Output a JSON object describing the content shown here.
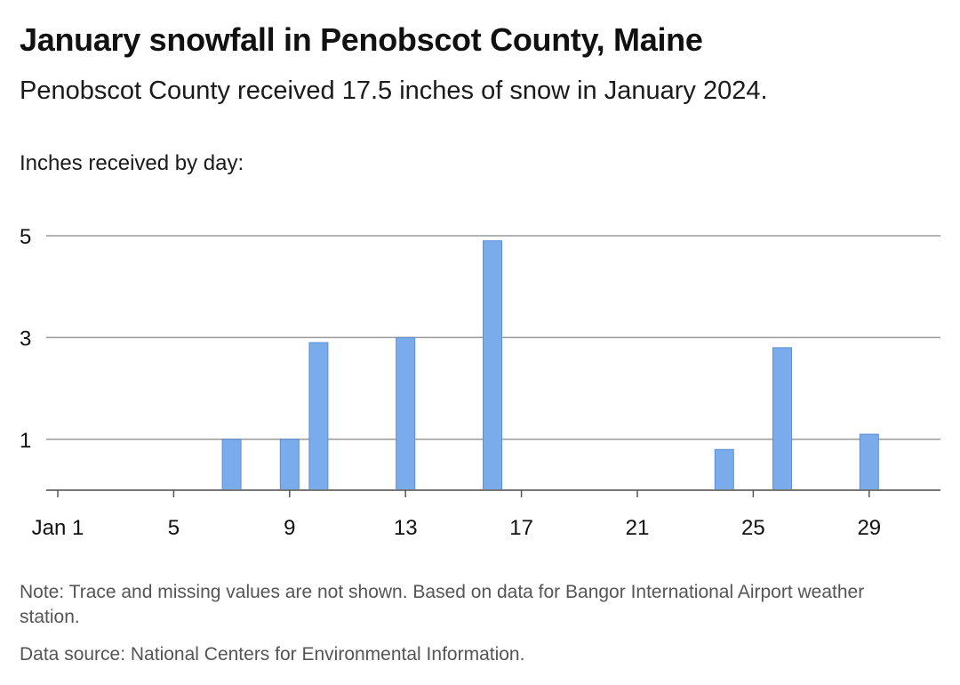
{
  "header": {
    "title": "January snowfall in Penobscot County, Maine",
    "subtitle": "Penobscot County received 17.5 inches of snow in January 2024.",
    "y_caption": "Inches received by day:"
  },
  "footer": {
    "note": "Note: Trace and missing values are not shown. Based on data for Bangor International Airport weather station.",
    "source": "Data source: National Centers for Environmental Information."
  },
  "chart_data": {
    "type": "bar",
    "title": "January snowfall in Penobscot County, Maine",
    "ylabel": "Inches received by day:",
    "xlabel": "",
    "xlim": [
      1,
      31
    ],
    "ylim": [
      0,
      5
    ],
    "y_ticks": [
      1,
      3,
      5
    ],
    "x_ticks": [
      1,
      5,
      9,
      13,
      17,
      21,
      25,
      29
    ],
    "x_tick_labels": [
      "Jan 1",
      "5",
      "9",
      "13",
      "17",
      "21",
      "25",
      "29"
    ],
    "grid": true,
    "bar_color": "#7aabeb",
    "bar_edge_color": "#5b8fd6",
    "days": [
      7,
      9,
      10,
      13,
      16,
      24,
      26,
      29
    ],
    "values": [
      1.0,
      1.0,
      2.9,
      3.0,
      4.9,
      0.8,
      2.8,
      1.1
    ]
  }
}
